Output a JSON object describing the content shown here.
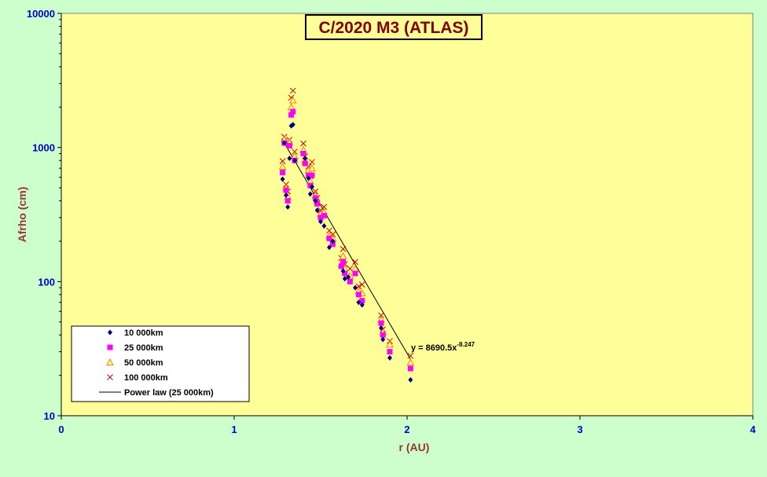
{
  "chart_data": {
    "type": "scatter",
    "title": "C/2020 M3 (ATLAS)",
    "xlabel": "r (AU)",
    "ylabel": "Afrho (cm)",
    "xlim": [
      0,
      4
    ],
    "ylim": [
      10,
      10000
    ],
    "yscale": "log",
    "x_ticks": [
      "0",
      "1",
      "2",
      "3",
      "4"
    ],
    "y_ticks": [
      "10",
      "100",
      "1000",
      "10000"
    ],
    "grid": false,
    "legend_position": "bottom-left",
    "colors": {
      "plot_background": "#ffff99",
      "page_background": "#ccffcc",
      "axis_text": "#0000cc",
      "label_text": "#993333",
      "title_text": "#800000"
    },
    "series": [
      {
        "name": "10 000km",
        "marker": "diamond",
        "color": "#000080",
        "points": [
          [
            1.28,
            580
          ],
          [
            1.29,
            1080
          ],
          [
            1.3,
            440
          ],
          [
            1.31,
            360
          ],
          [
            1.32,
            830
          ],
          [
            1.33,
            1450
          ],
          [
            1.34,
            1480
          ],
          [
            1.35,
            800
          ],
          [
            1.41,
            830
          ],
          [
            1.43,
            590
          ],
          [
            1.44,
            450
          ],
          [
            1.45,
            510
          ],
          [
            1.47,
            400
          ],
          [
            1.48,
            340
          ],
          [
            1.5,
            280
          ],
          [
            1.52,
            260
          ],
          [
            1.55,
            180
          ],
          [
            1.57,
            200
          ],
          [
            1.63,
            120
          ],
          [
            1.64,
            105
          ],
          [
            1.66,
            108
          ],
          [
            1.7,
            90
          ],
          [
            1.72,
            70
          ],
          [
            1.74,
            67
          ],
          [
            1.85,
            45
          ],
          [
            1.86,
            37
          ],
          [
            1.9,
            27
          ],
          [
            2.02,
            18.5
          ]
        ]
      },
      {
        "name": "25 000km",
        "marker": "square",
        "color": "#ff00ff",
        "points": [
          [
            1.28,
            650
          ],
          [
            1.29,
            1080
          ],
          [
            1.3,
            480
          ],
          [
            1.31,
            400
          ],
          [
            1.32,
            1030
          ],
          [
            1.33,
            1750
          ],
          [
            1.34,
            1850
          ],
          [
            1.35,
            800
          ],
          [
            1.4,
            900
          ],
          [
            1.41,
            760
          ],
          [
            1.43,
            620
          ],
          [
            1.44,
            520
          ],
          [
            1.45,
            620
          ],
          [
            1.47,
            420
          ],
          [
            1.48,
            380
          ],
          [
            1.5,
            300
          ],
          [
            1.52,
            310
          ],
          [
            1.55,
            210
          ],
          [
            1.57,
            190
          ],
          [
            1.62,
            130
          ],
          [
            1.63,
            140
          ],
          [
            1.64,
            115
          ],
          [
            1.67,
            100
          ],
          [
            1.7,
            115
          ],
          [
            1.72,
            80
          ],
          [
            1.74,
            72
          ],
          [
            1.85,
            49
          ],
          [
            1.86,
            40
          ],
          [
            1.9,
            30
          ],
          [
            2.02,
            22.5
          ]
        ]
      },
      {
        "name": "50 000km",
        "marker": "triangle",
        "color": "#ff8000",
        "points": [
          [
            1.28,
            720
          ],
          [
            1.29,
            1150
          ],
          [
            1.3,
            500
          ],
          [
            1.31,
            430
          ],
          [
            1.32,
            1090
          ],
          [
            1.33,
            2000
          ],
          [
            1.34,
            2250
          ],
          [
            1.35,
            860
          ],
          [
            1.4,
            960
          ],
          [
            1.41,
            800
          ],
          [
            1.43,
            680
          ],
          [
            1.44,
            560
          ],
          [
            1.45,
            700
          ],
          [
            1.47,
            440
          ],
          [
            1.48,
            400
          ],
          [
            1.5,
            320
          ],
          [
            1.52,
            330
          ],
          [
            1.55,
            220
          ],
          [
            1.57,
            210
          ],
          [
            1.62,
            135
          ],
          [
            1.63,
            155
          ],
          [
            1.64,
            125
          ],
          [
            1.67,
            110
          ],
          [
            1.7,
            125
          ],
          [
            1.72,
            85
          ],
          [
            1.74,
            82
          ],
          [
            1.85,
            52
          ],
          [
            1.86,
            42
          ],
          [
            1.9,
            34
          ],
          [
            2.02,
            25
          ]
        ]
      },
      {
        "name": "100 000km",
        "marker": "x",
        "color": "#cc0000",
        "points": [
          [
            1.28,
            790
          ],
          [
            1.29,
            1200
          ],
          [
            1.3,
            530
          ],
          [
            1.31,
            470
          ],
          [
            1.32,
            1140
          ],
          [
            1.33,
            2350
          ],
          [
            1.34,
            2650
          ],
          [
            1.35,
            930
          ],
          [
            1.4,
            1070
          ],
          [
            1.41,
            860
          ],
          [
            1.43,
            720
          ],
          [
            1.44,
            610
          ],
          [
            1.45,
            780
          ],
          [
            1.47,
            470
          ],
          [
            1.48,
            420
          ],
          [
            1.5,
            340
          ],
          [
            1.52,
            360
          ],
          [
            1.55,
            240
          ],
          [
            1.57,
            225
          ],
          [
            1.62,
            150
          ],
          [
            1.63,
            175
          ],
          [
            1.64,
            135
          ],
          [
            1.67,
            125
          ],
          [
            1.7,
            140
          ],
          [
            1.72,
            92
          ],
          [
            1.74,
            95
          ],
          [
            1.85,
            56
          ],
          [
            1.86,
            44
          ],
          [
            1.9,
            36
          ],
          [
            2.02,
            28
          ]
        ]
      },
      {
        "name": "Power law (25 000km)",
        "type": "line",
        "color": "#000000",
        "fit": {
          "a": 8690.5,
          "b": -8.247
        },
        "x_range": [
          1.28,
          2.02
        ]
      }
    ],
    "annotations": [
      {
        "text_base": "y = 8690.5x",
        "text_exp": "-8.247",
        "x": 2.02,
        "y": 28
      }
    ]
  }
}
